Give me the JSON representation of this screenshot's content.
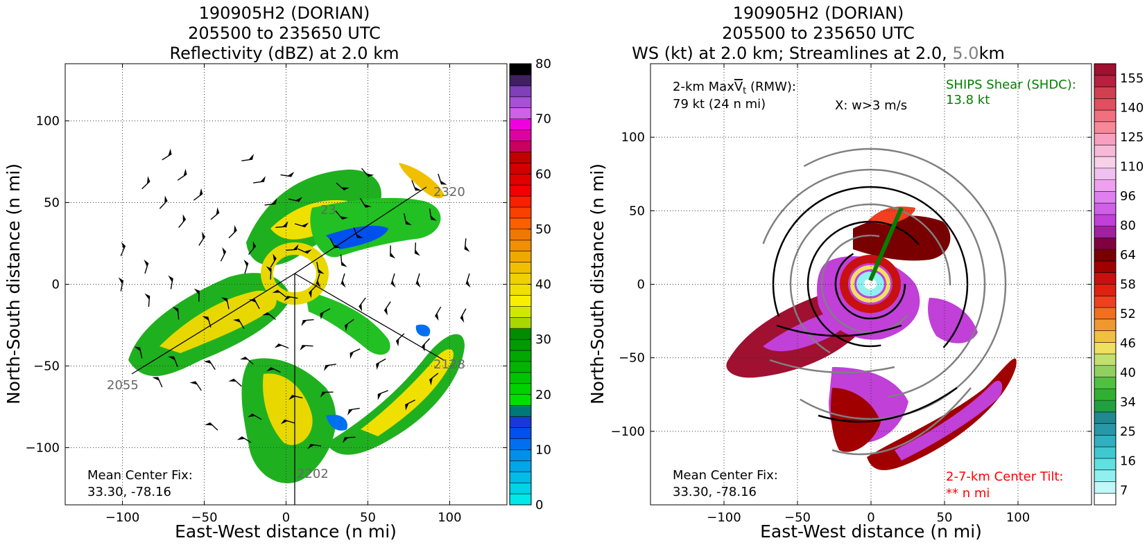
{
  "chart_data": [
    {
      "type": "heatmap",
      "title_lines": [
        "190905H2 (DORIAN)",
        "205500 to 235650 UTC",
        "Reflectivity (dBZ) at 2.0 km"
      ],
      "xlabel": "East-West distance (n mi)",
      "ylabel": "North-South distance (n mi)",
      "xlim": [
        -135,
        135
      ],
      "ylim": [
        -135,
        135
      ],
      "xticks": [
        -100,
        -50,
        0,
        50,
        100
      ],
      "yticks": [
        -100,
        -50,
        0,
        50,
        100
      ],
      "grid": true,
      "colorbar": {
        "min": 0,
        "max": 80,
        "ticks": [
          0,
          10,
          20,
          30,
          40,
          50,
          60,
          70,
          80
        ],
        "colors": [
          "#00e8e8",
          "#00d2e8",
          "#00bce8",
          "#00a6e8",
          "#0090e8",
          "#0070f0",
          "#0050f0",
          "#1838d8",
          "#007878",
          "#00e000",
          "#00d200",
          "#00c400",
          "#00b600",
          "#00a800",
          "#009a00",
          "#008c00",
          "#a8d800",
          "#d0e800",
          "#f8f000",
          "#f0e000",
          "#f0d000",
          "#f0c000",
          "#f0a800",
          "#f09000",
          "#f07800",
          "#f86000",
          "#f84000",
          "#f82000",
          "#f00000",
          "#e00000",
          "#d00000",
          "#c00000",
          "#c80060",
          "#e000a0",
          "#f000e0",
          "#d060e8",
          "#a850d8",
          "#8040b8",
          "#402060",
          "#000000"
        ]
      },
      "track_labels": [
        "2320",
        "2055",
        "2128",
        "2202",
        "23"
      ],
      "annotation": {
        "label": "Mean Center Fix:",
        "value": "33.30, -78.16"
      }
    },
    {
      "type": "heatmap",
      "title_lines": [
        "190905H2 (DORIAN)",
        "205500 to 235650 UTC"
      ],
      "title_line3_parts": [
        "WS (kt) at 2.0 km; Streamlines at 2.0, ",
        "5.0",
        "km"
      ],
      "title_line3_gray_color": "#808080",
      "xlabel": "East-West distance (n mi)",
      "ylabel": "North-South distance (n mi)",
      "xlim": [
        -150,
        150
      ],
      "ylim": [
        -150,
        150
      ],
      "xticks": [
        -100,
        -50,
        0,
        50,
        100
      ],
      "yticks": [
        -100,
        -50,
        0,
        50,
        100
      ],
      "grid": true,
      "colorbar": {
        "ticks": [
          7,
          16,
          25,
          34,
          40,
          46,
          52,
          58,
          64,
          80,
          96,
          110,
          125,
          140,
          155
        ],
        "colors": [
          "#ffffff",
          "#c0f8f8",
          "#90f0f0",
          "#60e0e0",
          "#40c8d0",
          "#30b0c0",
          "#2898a8",
          "#208890",
          "#20a040",
          "#30b030",
          "#50c040",
          "#90d060",
          "#c0e070",
          "#f0e060",
          "#f0c040",
          "#f09830",
          "#f07020",
          "#f04020",
          "#e02010",
          "#c81010",
          "#a00000",
          "#780000",
          "#800040",
          "#a020a0",
          "#c040d8",
          "#d060e8",
          "#e080f0",
          "#f0a0f0",
          "#f0c0f0",
          "#f8d0e8",
          "#f8b8d8",
          "#f8a0c0",
          "#f88898",
          "#f07080",
          "#e05060",
          "#d04050",
          "#b82040",
          "#a01030"
        ]
      },
      "max_wind_annotation": {
        "line1_prefix": "2-km Max",
        "vt_symbol": "V",
        "vt_sub": "t",
        "line1_suffix": " (RMW):",
        "line2": "79 kt (24 n mi)"
      },
      "w_annotation": "X: w>3 m/s",
      "shear_annotation": {
        "line1": "SHIPS Shear (SHDC):",
        "line2": "13.8 kt",
        "color": "#008000"
      },
      "tilt_annotation": {
        "line1": "2-7-km Center Tilt:",
        "line2": "** n mi",
        "color": "#ff0000"
      },
      "annotation": {
        "label": "Mean Center Fix:",
        "value": "33.30, -78.16"
      }
    }
  ]
}
